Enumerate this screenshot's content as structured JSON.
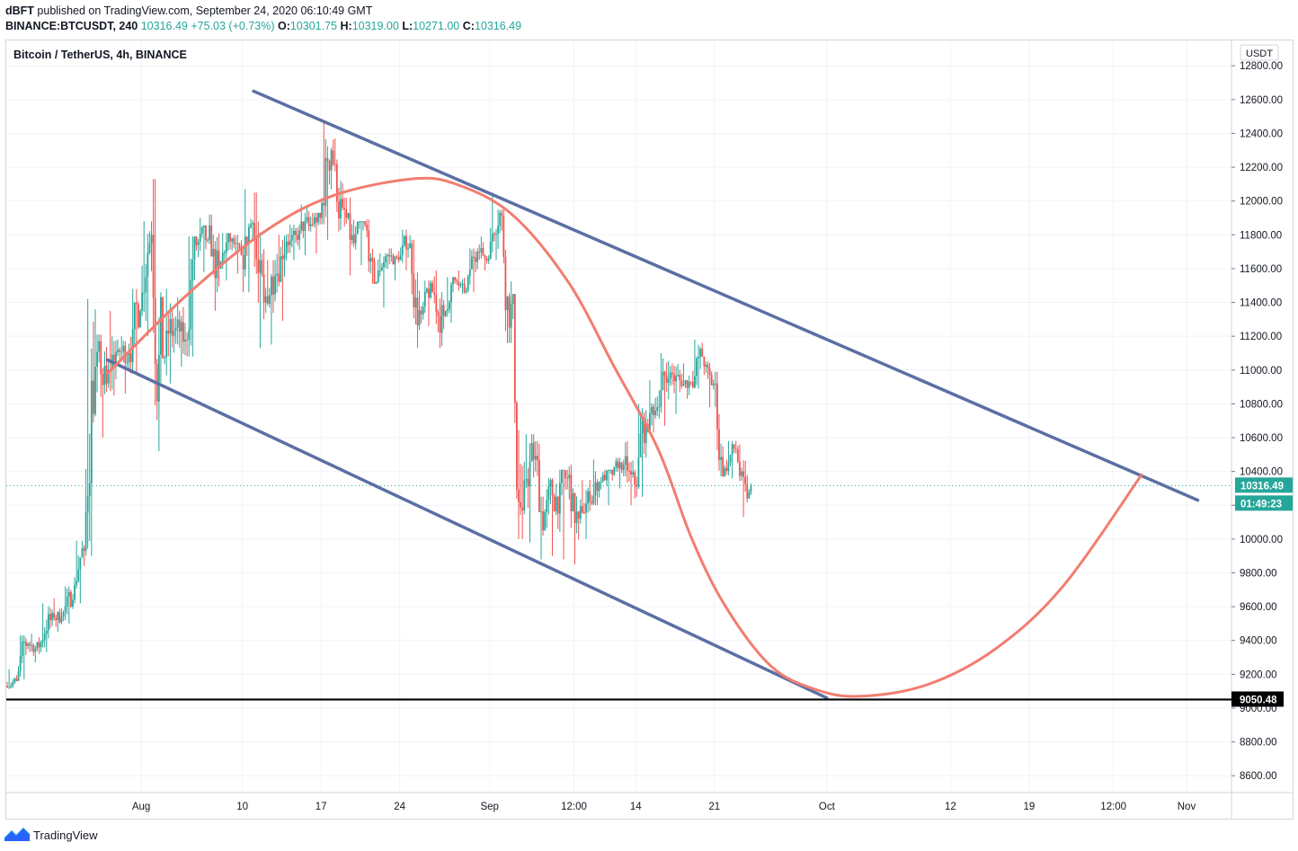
{
  "header": {
    "publisher": "dBFT",
    "published_text": "published on TradingView.com, September 24, 2020 06:10:49 GMT",
    "symbol": "BINANCE:BTCUSDT, 240",
    "last": "10316.49",
    "change": "+75.03 (+0.73%)",
    "o_label": "O:",
    "o_value": "10301.75",
    "h_label": "H:",
    "h_value": "10319.00",
    "l_label": "L:",
    "l_value": "10271.00",
    "c_label": "C:",
    "c_value": "10316.49"
  },
  "legend": {
    "title": "Bitcoin / TetherUS, 4h, BINANCE"
  },
  "footer": {
    "brand": "TradingView"
  },
  "chart_data": {
    "type": "candlestick",
    "title": "Bitcoin / TetherUS, 4h, BINANCE",
    "currency": "USDT",
    "ylim": [
      8500,
      12950
    ],
    "y_ticks": [
      8600,
      8800,
      9000,
      9200,
      9400,
      9600,
      9800,
      10000,
      10200,
      10400,
      10600,
      10800,
      11000,
      11200,
      11400,
      11600,
      11800,
      12000,
      12200,
      12400,
      12600,
      12800
    ],
    "x_range": [
      "2020-07-20",
      "2020-11-06"
    ],
    "x_ticks": [
      {
        "label": "Aug",
        "date": "2020-08-01"
      },
      {
        "label": "10",
        "date": "2020-08-10"
      },
      {
        "label": "17",
        "date": "2020-08-17"
      },
      {
        "label": "24",
        "date": "2020-08-24"
      },
      {
        "label": "Sep",
        "date": "2020-09-01"
      },
      {
        "label": "12:00",
        "date": "2020-09-08T12:00"
      },
      {
        "label": "14",
        "date": "2020-09-14"
      },
      {
        "label": "21",
        "date": "2020-09-21"
      },
      {
        "label": "Oct",
        "date": "2020-10-01"
      },
      {
        "label": "12",
        "date": "2020-10-12"
      },
      {
        "label": "19",
        "date": "2020-10-19"
      },
      {
        "label": "12:00",
        "date": "2020-10-26T12:00"
      },
      {
        "label": "Nov",
        "date": "2020-11-02"
      }
    ],
    "last_price": 10316.49,
    "last_price_label": "10316.49",
    "countdown": "01:49:23",
    "horizontal_line": {
      "price": 9050.48,
      "label": "9050.48"
    },
    "up_color": "#26a69a",
    "down_color": "#ef5350",
    "candle_path_daily": [
      {
        "date": "2020-07-20",
        "low": 9120,
        "high": 9230,
        "close": 9160
      },
      {
        "date": "2020-07-21",
        "low": 9170,
        "high": 9430,
        "close": 9380
      },
      {
        "date": "2020-07-22",
        "low": 9270,
        "high": 9440,
        "close": 9360
      },
      {
        "date": "2020-07-23",
        "low": 9330,
        "high": 9620,
        "close": 9520
      },
      {
        "date": "2020-07-24",
        "low": 9450,
        "high": 9650,
        "close": 9540
      },
      {
        "date": "2020-07-25",
        "low": 9500,
        "high": 9720,
        "close": 9640
      },
      {
        "date": "2020-07-26",
        "low": 9620,
        "high": 9990,
        "close": 9930
      },
      {
        "date": "2020-07-27",
        "low": 9900,
        "high": 11420,
        "close": 11020
      },
      {
        "date": "2020-07-28",
        "low": 10600,
        "high": 11210,
        "close": 10920
      },
      {
        "date": "2020-07-29",
        "low": 10850,
        "high": 11350,
        "close": 11120
      },
      {
        "date": "2020-07-30",
        "low": 10860,
        "high": 11200,
        "close": 11100
      },
      {
        "date": "2020-07-31",
        "low": 10980,
        "high": 11480,
        "close": 11350
      },
      {
        "date": "2020-08-01",
        "low": 11200,
        "high": 11880,
        "close": 11800
      },
      {
        "date": "2020-08-02",
        "low": 10520,
        "high": 12130,
        "close": 11070
      },
      {
        "date": "2020-08-03",
        "low": 10920,
        "high": 11480,
        "close": 11230
      },
      {
        "date": "2020-08-04",
        "low": 11020,
        "high": 11430,
        "close": 11180
      },
      {
        "date": "2020-08-05",
        "low": 11080,
        "high": 11790,
        "close": 11740
      },
      {
        "date": "2020-08-06",
        "low": 11580,
        "high": 11900,
        "close": 11770
      },
      {
        "date": "2020-08-07",
        "low": 11350,
        "high": 11920,
        "close": 11600
      },
      {
        "date": "2020-08-08",
        "low": 11530,
        "high": 11810,
        "close": 11760
      },
      {
        "date": "2020-08-09",
        "low": 11570,
        "high": 11800,
        "close": 11680
      },
      {
        "date": "2020-08-10",
        "low": 11460,
        "high": 12070,
        "close": 11870
      },
      {
        "date": "2020-08-11",
        "low": 11130,
        "high": 12050,
        "close": 11400
      },
      {
        "date": "2020-08-12",
        "low": 11150,
        "high": 11650,
        "close": 11560
      },
      {
        "date": "2020-08-13",
        "low": 11290,
        "high": 11800,
        "close": 11760
      },
      {
        "date": "2020-08-14",
        "low": 11650,
        "high": 11860,
        "close": 11770
      },
      {
        "date": "2020-08-15",
        "low": 11680,
        "high": 11980,
        "close": 11850
      },
      {
        "date": "2020-08-16",
        "low": 11690,
        "high": 11930,
        "close": 11900
      },
      {
        "date": "2020-08-17",
        "low": 11770,
        "high": 12470,
        "close": 12300
      },
      {
        "date": "2020-08-18",
        "low": 11820,
        "high": 12370,
        "close": 11960
      },
      {
        "date": "2020-08-19",
        "low": 11560,
        "high": 12020,
        "close": 11750
      },
      {
        "date": "2020-08-20",
        "low": 11620,
        "high": 11880,
        "close": 11860
      },
      {
        "date": "2020-08-21",
        "low": 11510,
        "high": 11890,
        "close": 11520
      },
      {
        "date": "2020-08-22",
        "low": 11370,
        "high": 11690,
        "close": 11680
      },
      {
        "date": "2020-08-23",
        "low": 11530,
        "high": 11720,
        "close": 11650
      },
      {
        "date": "2020-08-24",
        "low": 11590,
        "high": 11830,
        "close": 11750
      },
      {
        "date": "2020-08-25",
        "low": 11130,
        "high": 11770,
        "close": 11330
      },
      {
        "date": "2020-08-26",
        "low": 11260,
        "high": 11530,
        "close": 11460
      },
      {
        "date": "2020-08-27",
        "low": 11130,
        "high": 11590,
        "close": 11320
      },
      {
        "date": "2020-08-28",
        "low": 11280,
        "high": 11550,
        "close": 11530
      },
      {
        "date": "2020-08-29",
        "low": 11450,
        "high": 11590,
        "close": 11470
      },
      {
        "date": "2020-08-30",
        "low": 11460,
        "high": 11720,
        "close": 11700
      },
      {
        "date": "2020-08-31",
        "low": 11590,
        "high": 11790,
        "close": 11660
      },
      {
        "date": "2020-09-01",
        "low": 11650,
        "high": 12050,
        "close": 11930
      },
      {
        "date": "2020-09-02",
        "low": 11160,
        "high": 11950,
        "close": 11390
      },
      {
        "date": "2020-09-03",
        "low": 10000,
        "high": 11450,
        "close": 10170
      },
      {
        "date": "2020-09-04",
        "low": 9980,
        "high": 10620,
        "close": 10470
      },
      {
        "date": "2020-09-05",
        "low": 9880,
        "high": 10580,
        "close": 10160
      },
      {
        "date": "2020-09-06",
        "low": 9900,
        "high": 10360,
        "close": 10250
      },
      {
        "date": "2020-09-07",
        "low": 9880,
        "high": 10410,
        "close": 10360
      },
      {
        "date": "2020-09-08",
        "low": 9850,
        "high": 10440,
        "close": 10120
      },
      {
        "date": "2020-09-09",
        "low": 10000,
        "high": 10350,
        "close": 10220
      },
      {
        "date": "2020-09-10",
        "low": 10200,
        "high": 10470,
        "close": 10340
      },
      {
        "date": "2020-09-11",
        "low": 10200,
        "high": 10410,
        "close": 10380
      },
      {
        "date": "2020-09-12",
        "low": 10300,
        "high": 10480,
        "close": 10440
      },
      {
        "date": "2020-09-13",
        "low": 10200,
        "high": 10580,
        "close": 10320
      },
      {
        "date": "2020-09-14",
        "low": 10250,
        "high": 10800,
        "close": 10680
      },
      {
        "date": "2020-09-15",
        "low": 10630,
        "high": 10940,
        "close": 10780
      },
      {
        "date": "2020-09-16",
        "low": 10670,
        "high": 11100,
        "close": 10950
      },
      {
        "date": "2020-09-17",
        "low": 10740,
        "high": 11040,
        "close": 10940
      },
      {
        "date": "2020-09-18",
        "low": 10830,
        "high": 11040,
        "close": 10930
      },
      {
        "date": "2020-09-19",
        "low": 10890,
        "high": 11180,
        "close": 11080
      },
      {
        "date": "2020-09-20",
        "low": 10780,
        "high": 11050,
        "close": 10920
      },
      {
        "date": "2020-09-21",
        "low": 10370,
        "high": 10990,
        "close": 10420
      },
      {
        "date": "2020-09-22",
        "low": 10360,
        "high": 10580,
        "close": 10530
      },
      {
        "date": "2020-09-23",
        "low": 10130,
        "high": 10560,
        "close": 10240
      },
      {
        "date": "2020-09-24",
        "low": 10240,
        "high": 10330,
        "close": 10316.49
      }
    ],
    "channel_upper": {
      "start": {
        "date": "2020-08-11",
        "price": 12650
      },
      "end": {
        "date": "2020-11-03",
        "price": 10230
      },
      "color": "#5b6fa3"
    },
    "channel_lower": {
      "start": {
        "date": "2020-07-29",
        "price": 11060
      },
      "end": {
        "date": "2020-10-01",
        "price": 9060
      },
      "color": "#5b6fa3"
    },
    "projection_curve": {
      "color": "#f27d70",
      "points": [
        {
          "date": "2020-07-29",
          "price": 10980
        },
        {
          "date": "2020-08-05",
          "price": 11440
        },
        {
          "date": "2020-08-12",
          "price": 11820
        },
        {
          "date": "2020-08-18",
          "price": 12030
        },
        {
          "date": "2020-08-25",
          "price": 12130
        },
        {
          "date": "2020-08-29",
          "price": 12100
        },
        {
          "date": "2020-09-03",
          "price": 11920
        },
        {
          "date": "2020-09-08",
          "price": 11520
        },
        {
          "date": "2020-09-12",
          "price": 11030
        },
        {
          "date": "2020-09-16",
          "price": 10530
        },
        {
          "date": "2020-09-19",
          "price": 10000
        },
        {
          "date": "2020-09-22",
          "price": 9600
        },
        {
          "date": "2020-09-26",
          "price": 9250
        },
        {
          "date": "2020-09-30",
          "price": 9110
        },
        {
          "date": "2020-10-04",
          "price": 9070
        },
        {
          "date": "2020-10-10",
          "price": 9140
        },
        {
          "date": "2020-10-16",
          "price": 9350
        },
        {
          "date": "2020-10-22",
          "price": 9720
        },
        {
          "date": "2020-10-29",
          "price": 10380
        }
      ]
    }
  }
}
